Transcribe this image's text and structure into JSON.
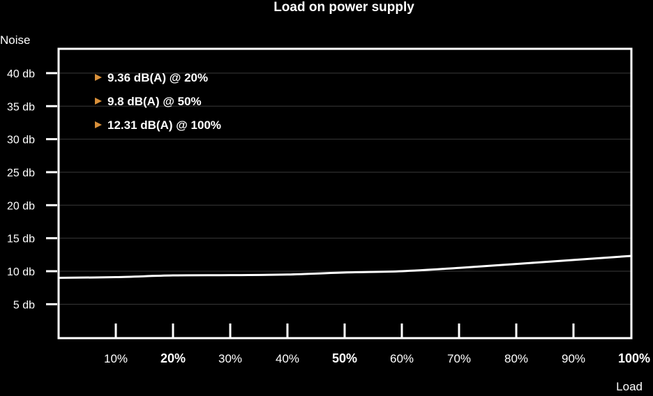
{
  "chart_data": {
    "type": "line",
    "title": "Load on power supply",
    "ylabel": "Noise",
    "xlabel": "Load",
    "ylim": [
      0,
      45
    ],
    "xlim": [
      0,
      100
    ],
    "y_ticks": [
      {
        "value": 5,
        "label": "5 db"
      },
      {
        "value": 10,
        "label": "10 db"
      },
      {
        "value": 15,
        "label": "15 db"
      },
      {
        "value": 20,
        "label": "20 db"
      },
      {
        "value": 25,
        "label": "25 db"
      },
      {
        "value": 30,
        "label": "30 db"
      },
      {
        "value": 35,
        "label": "35 db"
      },
      {
        "value": 40,
        "label": "40 db"
      }
    ],
    "x_ticks": [
      {
        "value": 10,
        "label": "10%",
        "bold": false
      },
      {
        "value": 20,
        "label": "20%",
        "bold": true
      },
      {
        "value": 30,
        "label": "30%",
        "bold": false
      },
      {
        "value": 40,
        "label": "40%",
        "bold": false
      },
      {
        "value": 50,
        "label": "50%",
        "bold": true
      },
      {
        "value": 60,
        "label": "60%",
        "bold": false
      },
      {
        "value": 70,
        "label": "70%",
        "bold": false
      },
      {
        "value": 80,
        "label": "80%",
        "bold": false
      },
      {
        "value": 90,
        "label": "90%",
        "bold": false
      },
      {
        "value": 100,
        "label": "100%",
        "bold": true
      }
    ],
    "series": [
      {
        "x": [
          0,
          10,
          20,
          30,
          40,
          50,
          60,
          70,
          80,
          90,
          100
        ],
        "values": [
          9.0,
          9.1,
          9.36,
          9.4,
          9.5,
          9.8,
          10.0,
          10.5,
          11.1,
          11.7,
          12.31
        ]
      }
    ],
    "annotations": [
      "9.36 dB(A) @ 20%",
      "9.8 dB(A) @ 50%",
      "12.31 dB(A) @ 100%"
    ],
    "grid": true,
    "colors": {
      "background": "#000000",
      "line": "#ffffff",
      "grid": "#3a3a3a",
      "bullet": "#d9903a"
    }
  }
}
